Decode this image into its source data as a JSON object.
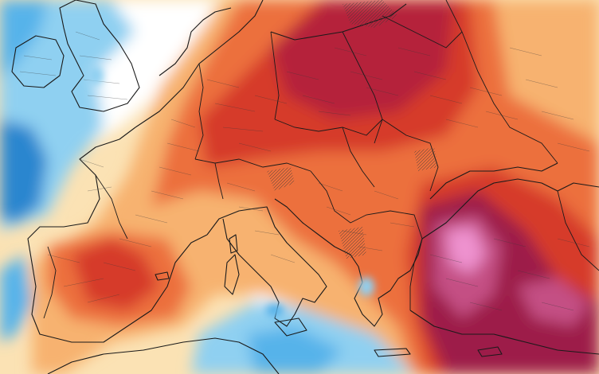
{
  "map": {
    "kind": "temperature-anomaly-map",
    "region": "Europe",
    "labels_visible": false,
    "palette": {
      "sea_light": "#cfe9f7",
      "cold_1": "#8fd0f1",
      "cold_2": "#57b3ea",
      "cold_3": "#2c86cf",
      "neutral": "#ffffff",
      "warm_1": "#fde7b3",
      "warm_2": "#f7b26f",
      "warm_3": "#ec6f3e",
      "warm_4": "#d63b2c",
      "warm_5": "#b5243a",
      "warm_6": "#9d1f4a",
      "warm_7": "#c44f84",
      "warm_8": "#ee92cf",
      "border_line": "#1a1a1a",
      "subregion_line": "#3a3a3a"
    }
  }
}
